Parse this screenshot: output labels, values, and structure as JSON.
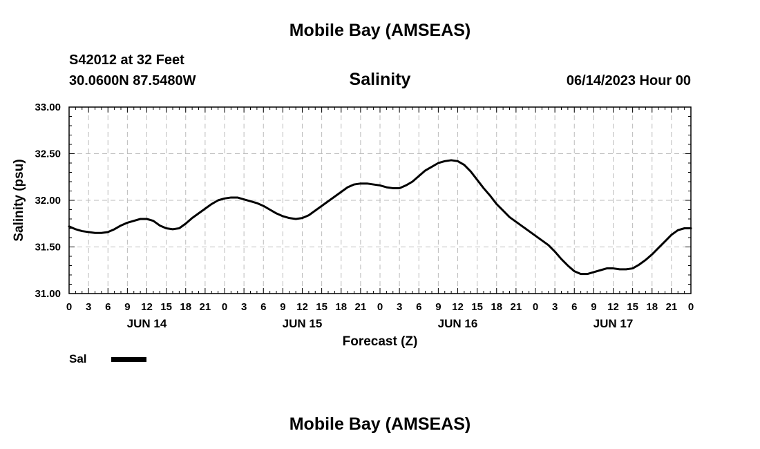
{
  "header": {
    "main_title": "Mobile Bay (AMSEAS)",
    "bottom_title": "Mobile Bay (AMSEAS)",
    "station": "S42012 at 32 Feet",
    "coords": "30.0600N  87.5480W",
    "timestamp": "06/14/2023 Hour 00"
  },
  "legend": {
    "label": "Sal",
    "color": "#000000"
  },
  "chart_data": {
    "type": "line",
    "title": "Salinity",
    "xlabel": "Forecast (Z)",
    "ylabel": "Salinity (psu)",
    "ylim": [
      31.0,
      33.0
    ],
    "yticks": [
      "31.00",
      "31.50",
      "32.00",
      "32.50",
      "33.00"
    ],
    "xlim_hours": [
      0,
      96
    ],
    "xtick_labels": [
      "0",
      "3",
      "6",
      "9",
      "12",
      "15",
      "18",
      "21",
      "0",
      "3",
      "6",
      "9",
      "12",
      "15",
      "18",
      "21",
      "0",
      "3",
      "6",
      "9",
      "12",
      "15",
      "18",
      "21",
      "0",
      "3",
      "6",
      "9",
      "12",
      "15",
      "18",
      "21",
      "0"
    ],
    "day_labels": [
      {
        "label": "JUN 14",
        "hour": 12
      },
      {
        "label": "JUN 15",
        "hour": 36
      },
      {
        "label": "JUN 16",
        "hour": 60
      },
      {
        "label": "JUN 17",
        "hour": 84
      }
    ],
    "grid": true,
    "series": [
      {
        "name": "Sal",
        "x": [
          0,
          1,
          2,
          3,
          4,
          5,
          6,
          7,
          8,
          9,
          10,
          11,
          12,
          13,
          14,
          15,
          16,
          17,
          18,
          19,
          20,
          21,
          22,
          23,
          24,
          25,
          26,
          27,
          28,
          29,
          30,
          31,
          32,
          33,
          34,
          35,
          36,
          37,
          38,
          39,
          40,
          41,
          42,
          43,
          44,
          45,
          46,
          47,
          48,
          49,
          50,
          51,
          52,
          53,
          54,
          55,
          56,
          57,
          58,
          59,
          60,
          61,
          62,
          63,
          64,
          65,
          66,
          67,
          68,
          69,
          70,
          71,
          72,
          73,
          74,
          75,
          76,
          77,
          78,
          79,
          80,
          81,
          82,
          83,
          84,
          85,
          86,
          87,
          88,
          89,
          90,
          91,
          92,
          93,
          94,
          95,
          96
        ],
        "values": [
          31.72,
          31.69,
          31.67,
          31.66,
          31.65,
          31.65,
          31.66,
          31.69,
          31.73,
          31.76,
          31.78,
          31.8,
          31.8,
          31.78,
          31.73,
          31.7,
          31.69,
          31.7,
          31.75,
          31.81,
          31.86,
          31.91,
          31.96,
          32.0,
          32.02,
          32.03,
          32.03,
          32.01,
          31.99,
          31.97,
          31.94,
          31.9,
          31.86,
          31.83,
          31.81,
          31.8,
          31.81,
          31.84,
          31.89,
          31.94,
          31.99,
          32.04,
          32.09,
          32.14,
          32.17,
          32.18,
          32.18,
          32.17,
          32.16,
          32.14,
          32.13,
          32.13,
          32.16,
          32.2,
          32.26,
          32.32,
          32.36,
          32.4,
          32.42,
          32.43,
          32.42,
          32.38,
          32.31,
          32.22,
          32.13,
          32.05,
          31.96,
          31.89,
          31.82,
          31.77,
          31.72,
          31.67,
          31.62,
          31.57,
          31.52,
          31.45,
          31.37,
          31.3,
          31.24,
          31.21,
          31.21,
          31.23,
          31.25,
          31.27,
          31.27,
          31.26,
          31.26,
          31.27,
          31.31,
          31.36,
          31.42,
          31.49,
          31.56,
          31.63,
          31.68,
          31.7,
          31.7
        ]
      }
    ]
  }
}
